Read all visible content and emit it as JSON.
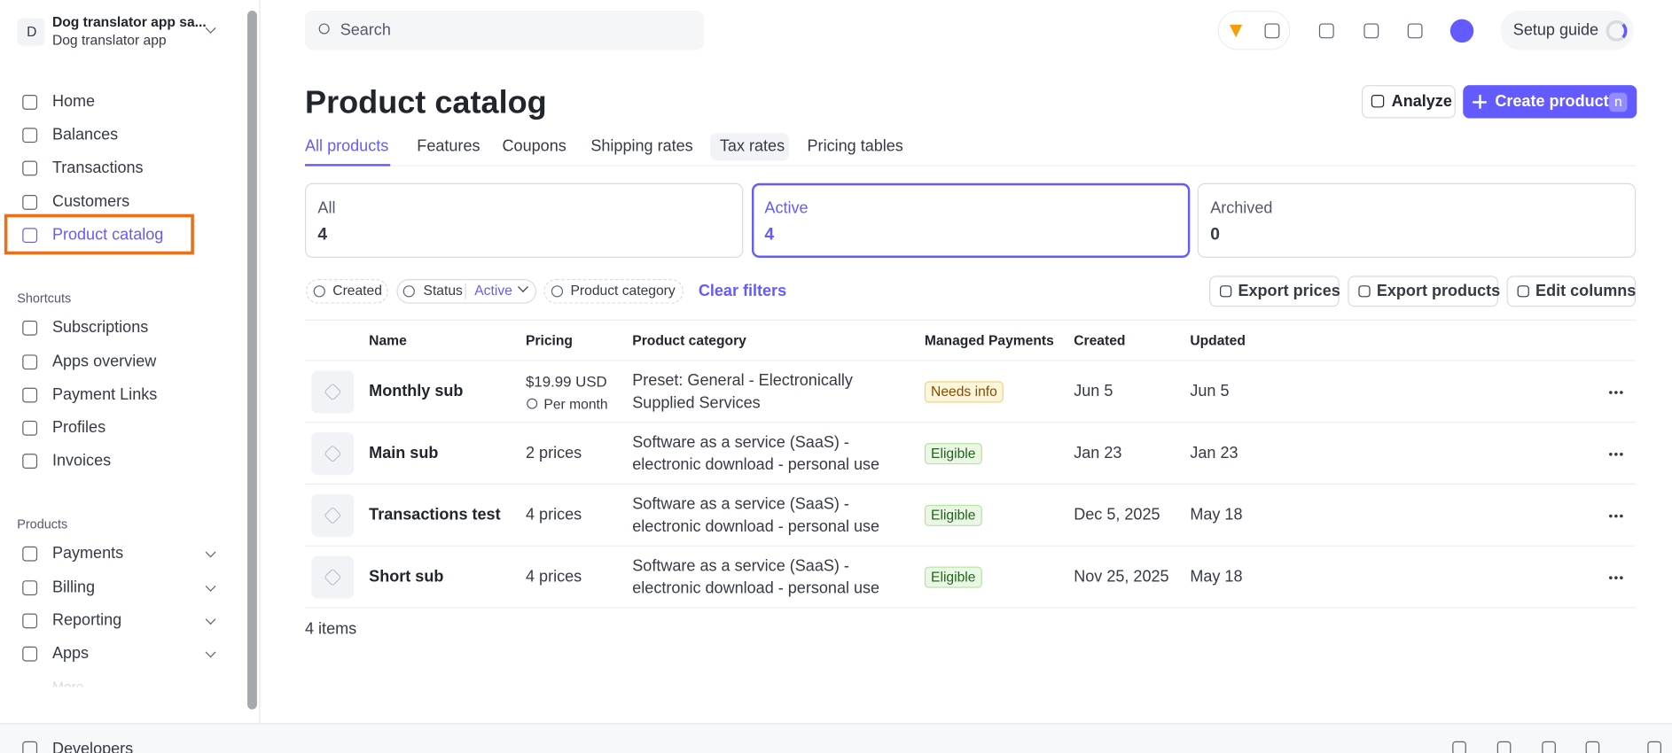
{
  "sidebar": {
    "account": {
      "initial": "D",
      "name": "Dog translator app sa...",
      "subtitle": "Dog translator app"
    },
    "nav": [
      "Home",
      "Balances",
      "Transactions",
      "Customers",
      "Product catalog"
    ],
    "shortcuts_title": "Shortcuts",
    "shortcuts": [
      "Subscriptions",
      "Apps overview",
      "Payment Links",
      "Profiles",
      "Invoices"
    ],
    "products_title": "Products",
    "products": [
      "Payments",
      "Billing",
      "Reporting",
      "Apps"
    ],
    "more": "More",
    "developers": "Developers"
  },
  "header": {
    "search_placeholder": "Search",
    "setup_guide": "Setup guide"
  },
  "page": {
    "title": "Product catalog",
    "analyze": "Analyze",
    "create": "Create product",
    "create_shortcut": "n",
    "tabs": [
      "All products",
      "Features",
      "Coupons",
      "Shipping rates",
      "Tax rates",
      "Pricing tables"
    ],
    "status_cards": [
      {
        "label": "All",
        "count": "4"
      },
      {
        "label": "Active",
        "count": "4"
      },
      {
        "label": "Archived",
        "count": "0"
      }
    ],
    "filters": {
      "created": "Created",
      "status": "Status",
      "status_value": "Active",
      "category": "Product category",
      "clear": "Clear filters"
    },
    "actions": [
      "Export prices",
      "Export products",
      "Edit columns"
    ],
    "table": {
      "columns": [
        "Name",
        "Pricing",
        "Product category",
        "Managed Payments",
        "Created",
        "Updated"
      ],
      "rows": [
        {
          "name": "Monthly sub",
          "pricing": "$19.99 USD",
          "pricing_note": "Per month",
          "category": [
            "Preset: General - Electronically",
            "Supplied Services"
          ],
          "managed": "Needs info",
          "created": "Jun 5",
          "updated": "Jun 5"
        },
        {
          "name": "Main sub",
          "pricing": "2 prices",
          "category": [
            "Software as a service (SaaS) -",
            "electronic download - personal use"
          ],
          "managed": "Eligible",
          "created": "Jan 23",
          "updated": "Jan 23"
        },
        {
          "name": "Transactions test",
          "pricing": "4 prices",
          "category": [
            "Software as a service (SaaS) -",
            "electronic download - personal use"
          ],
          "managed": "Eligible",
          "created": "Dec 5, 2025",
          "updated": "May 18"
        },
        {
          "name": "Short sub",
          "pricing": "4 prices",
          "category": [
            "Software as a service (SaaS) -",
            "electronic download - personal use"
          ],
          "managed": "Eligible",
          "created": "Nov 25, 2025",
          "updated": "May 18"
        }
      ]
    },
    "footer": "4 items"
  }
}
